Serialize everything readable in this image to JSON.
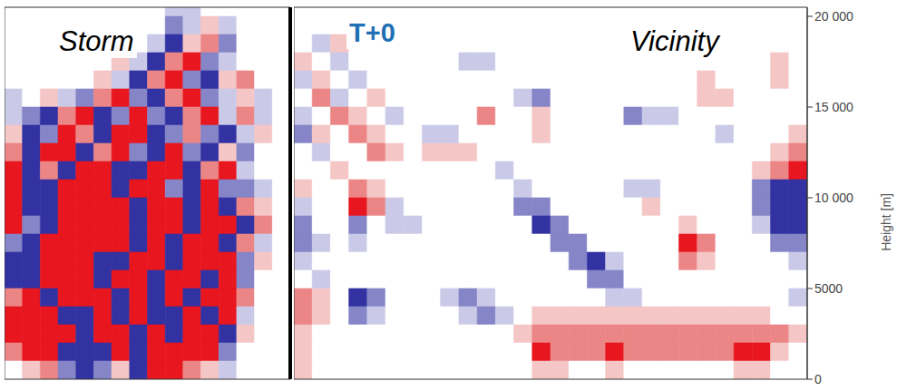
{
  "chart_data": {
    "type": "heatmap",
    "ylabel": "Height [m]",
    "ylim": [
      0,
      20500
    ],
    "yticks": [
      0,
      5000,
      {
        "value": 10000,
        "label": "10 000"
      },
      {
        "value": 15000,
        "label": "15 000"
      },
      {
        "value": 20000,
        "label": "20 000"
      }
    ],
    "tick_labels": "y",
    "annotation": "T+0",
    "y": [
      20500,
      19500,
      18500,
      17500,
      16500,
      15500,
      14500,
      13500,
      12500,
      11500,
      10500,
      9500,
      8500,
      7500,
      6500,
      5500,
      4500,
      3500,
      2500,
      1500,
      500
    ],
    "levels": [
      -3,
      -2,
      -1,
      0,
      1,
      2,
      3
    ],
    "colors": [
      "#3232a2",
      "#8585c8",
      "#cacae8",
      "#ffffff",
      "#f5c6c6",
      "#ec8686",
      "#e8161e"
    ],
    "panels": [
      {
        "title": "Storm",
        "cells": [
          [
            0,
            0,
            0,
            0,
            0,
            0,
            0,
            0,
            0,
            -1,
            -1,
            0,
            0,
            0,
            0,
            0
          ],
          [
            0,
            0,
            0,
            0,
            0,
            0,
            0,
            0,
            0,
            -2,
            -1,
            1,
            -1,
            0,
            0,
            0
          ],
          [
            0,
            0,
            0,
            0,
            0,
            0,
            0,
            0,
            -1,
            -3,
            1,
            2,
            -2,
            0,
            0,
            0
          ],
          [
            0,
            0,
            0,
            0,
            0,
            0,
            1,
            -1,
            -3,
            2,
            3,
            -2,
            -1,
            0,
            0,
            0
          ],
          [
            0,
            0,
            0,
            0,
            0,
            1,
            -1,
            -3,
            2,
            3,
            -2,
            -3,
            1,
            2,
            0,
            0
          ],
          [
            -1,
            0,
            1,
            -1,
            -2,
            2,
            3,
            -2,
            -3,
            2,
            3,
            -2,
            -1,
            1,
            -1,
            0
          ],
          [
            -1,
            -2,
            -3,
            2,
            3,
            -3,
            -2,
            3,
            -2,
            -3,
            2,
            3,
            -1,
            2,
            -1,
            0
          ],
          [
            1,
            -3,
            -2,
            3,
            2,
            -3,
            3,
            3,
            -3,
            -2,
            2,
            -2,
            -3,
            -1,
            1,
            0
          ],
          [
            2,
            -3,
            3,
            3,
            -3,
            2,
            3,
            -2,
            -3,
            3,
            -2,
            -3,
            1,
            -2,
            0,
            0
          ],
          [
            3,
            -3,
            2,
            -3,
            3,
            3,
            -3,
            -3,
            3,
            3,
            -3,
            2,
            3,
            -1,
            0,
            0
          ],
          [
            3,
            -3,
            -3,
            3,
            3,
            3,
            -3,
            3,
            3,
            -2,
            -3,
            3,
            -2,
            -2,
            -1,
            0
          ],
          [
            3,
            -3,
            -3,
            3,
            3,
            3,
            3,
            -3,
            3,
            3,
            -3,
            3,
            -3,
            2,
            1,
            0
          ],
          [
            3,
            -2,
            -3,
            3,
            3,
            3,
            3,
            -3,
            3,
            3,
            -3,
            3,
            3,
            -3,
            2,
            0
          ],
          [
            -2,
            -3,
            3,
            3,
            3,
            3,
            3,
            -3,
            3,
            -3,
            3,
            3,
            -3,
            2,
            -1,
            0
          ],
          [
            -3,
            -3,
            3,
            3,
            3,
            -3,
            -3,
            3,
            3,
            -3,
            3,
            3,
            3,
            -2,
            1,
            0
          ],
          [
            -3,
            -3,
            3,
            3,
            3,
            -3,
            3,
            3,
            -3,
            3,
            3,
            -3,
            3,
            -2,
            0,
            0
          ],
          [
            2,
            3,
            -3,
            3,
            3,
            3,
            -3,
            3,
            -3,
            3,
            -3,
            3,
            3,
            2,
            0,
            0
          ],
          [
            3,
            3,
            3,
            -3,
            -3,
            3,
            -3,
            3,
            -3,
            -3,
            3,
            -3,
            3,
            -1,
            0,
            0
          ],
          [
            3,
            3,
            3,
            3,
            -3,
            3,
            3,
            -3,
            3,
            -3,
            3,
            3,
            -3,
            1,
            0,
            0
          ],
          [
            2,
            3,
            3,
            -3,
            -3,
            -3,
            3,
            -3,
            3,
            3,
            3,
            3,
            -2,
            0,
            0,
            0
          ],
          [
            0,
            1,
            2,
            -2,
            -3,
            -2,
            1,
            -3,
            3,
            3,
            2,
            1,
            -1,
            0,
            0,
            0
          ]
        ]
      },
      {
        "title": "Vicinity",
        "cells": [
          [
            0,
            0,
            0,
            0,
            0,
            0,
            0,
            0,
            0,
            0,
            0,
            0,
            0,
            0,
            0,
            0,
            0,
            0,
            0,
            0,
            0,
            0,
            0,
            0,
            0,
            0,
            0,
            0
          ],
          [
            0,
            0,
            0,
            0,
            0,
            0,
            0,
            0,
            0,
            0,
            0,
            0,
            0,
            0,
            0,
            0,
            0,
            0,
            0,
            0,
            0,
            0,
            0,
            0,
            0,
            0,
            0,
            0
          ],
          [
            0,
            -1,
            1,
            0,
            0,
            0,
            0,
            0,
            0,
            0,
            0,
            0,
            0,
            0,
            0,
            0,
            0,
            0,
            0,
            0,
            0,
            0,
            0,
            0,
            0,
            0,
            0,
            0
          ],
          [
            1,
            0,
            -1,
            0,
            0,
            0,
            0,
            0,
            0,
            -1,
            -1,
            0,
            0,
            0,
            0,
            0,
            0,
            0,
            0,
            0,
            0,
            0,
            0,
            0,
            0,
            0,
            1,
            0
          ],
          [
            -1,
            1,
            0,
            -1,
            0,
            0,
            0,
            0,
            0,
            0,
            0,
            0,
            0,
            0,
            0,
            0,
            0,
            0,
            0,
            0,
            0,
            0,
            1,
            0,
            0,
            0,
            1,
            0
          ],
          [
            0,
            2,
            -1,
            0,
            1,
            0,
            0,
            0,
            0,
            0,
            0,
            0,
            -1,
            -2,
            0,
            0,
            0,
            0,
            0,
            0,
            0,
            0,
            1,
            1,
            0,
            0,
            0,
            0
          ],
          [
            -1,
            0,
            2,
            1,
            0,
            -1,
            0,
            0,
            0,
            0,
            2,
            0,
            0,
            1,
            0,
            0,
            0,
            0,
            -2,
            -1,
            -1,
            0,
            0,
            0,
            0,
            0,
            0,
            0
          ],
          [
            -2,
            1,
            0,
            2,
            1,
            0,
            0,
            -1,
            -1,
            0,
            0,
            0,
            0,
            1,
            0,
            0,
            0,
            0,
            0,
            0,
            0,
            0,
            0,
            -1,
            0,
            0,
            0,
            1
          ],
          [
            0,
            -1,
            0,
            0,
            2,
            1,
            0,
            1,
            1,
            1,
            0,
            0,
            0,
            0,
            0,
            0,
            0,
            0,
            0,
            0,
            0,
            0,
            0,
            0,
            0,
            0,
            1,
            2
          ],
          [
            0,
            0,
            1,
            0,
            0,
            0,
            0,
            0,
            0,
            0,
            0,
            -1,
            0,
            0,
            0,
            0,
            0,
            0,
            0,
            0,
            0,
            0,
            0,
            0,
            0,
            1,
            2,
            3
          ],
          [
            1,
            0,
            0,
            2,
            1,
            0,
            0,
            0,
            0,
            0,
            0,
            0,
            -1,
            0,
            0,
            0,
            0,
            0,
            -1,
            -1,
            0,
            0,
            0,
            0,
            0,
            -2,
            -3,
            -3
          ],
          [
            -1,
            0,
            0,
            3,
            2,
            -1,
            0,
            0,
            0,
            0,
            0,
            0,
            -2,
            -2,
            0,
            0,
            0,
            0,
            0,
            1,
            0,
            0,
            0,
            0,
            0,
            -2,
            -3,
            -3
          ],
          [
            -2,
            0,
            0,
            -2,
            0,
            -1,
            -1,
            0,
            0,
            0,
            0,
            0,
            0,
            -3,
            -2,
            0,
            0,
            0,
            0,
            0,
            0,
            1,
            0,
            0,
            0,
            -1,
            -3,
            -3
          ],
          [
            -2,
            -1,
            0,
            -1,
            0,
            0,
            0,
            0,
            0,
            0,
            0,
            0,
            0,
            0,
            -2,
            -2,
            0,
            0,
            0,
            0,
            0,
            3,
            2,
            0,
            0,
            0,
            -2,
            -2
          ],
          [
            -1,
            0,
            0,
            0,
            0,
            0,
            0,
            0,
            0,
            0,
            0,
            0,
            0,
            0,
            0,
            -2,
            -3,
            -1,
            0,
            0,
            0,
            2,
            1,
            0,
            0,
            0,
            0,
            -1
          ],
          [
            0,
            -1,
            0,
            0,
            0,
            0,
            0,
            0,
            0,
            0,
            0,
            0,
            0,
            0,
            0,
            0,
            -2,
            -2,
            0,
            0,
            0,
            0,
            0,
            0,
            0,
            0,
            0,
            0
          ],
          [
            2,
            1,
            0,
            -3,
            -2,
            0,
            0,
            0,
            -1,
            -2,
            -1,
            0,
            0,
            0,
            0,
            0,
            0,
            -1,
            -1,
            0,
            0,
            0,
            0,
            0,
            0,
            0,
            0,
            -1
          ],
          [
            2,
            1,
            0,
            -2,
            -1,
            0,
            0,
            0,
            0,
            -1,
            -2,
            -1,
            0,
            1,
            1,
            1,
            1,
            1,
            1,
            1,
            1,
            1,
            1,
            1,
            1,
            1,
            0,
            0
          ],
          [
            1,
            0,
            0,
            0,
            0,
            0,
            0,
            0,
            0,
            0,
            0,
            0,
            1,
            2,
            2,
            2,
            2,
            2,
            2,
            2,
            2,
            2,
            2,
            2,
            2,
            2,
            2,
            1
          ],
          [
            1,
            0,
            0,
            0,
            0,
            0,
            0,
            0,
            0,
            0,
            0,
            0,
            0,
            3,
            2,
            2,
            2,
            3,
            2,
            2,
            2,
            2,
            2,
            2,
            3,
            3,
            1,
            0
          ],
          [
            1,
            0,
            0,
            0,
            0,
            0,
            0,
            0,
            0,
            0,
            0,
            0,
            0,
            1,
            1,
            0,
            0,
            1,
            0,
            0,
            0,
            0,
            0,
            0,
            1,
            1,
            0,
            0
          ]
        ]
      }
    ]
  }
}
